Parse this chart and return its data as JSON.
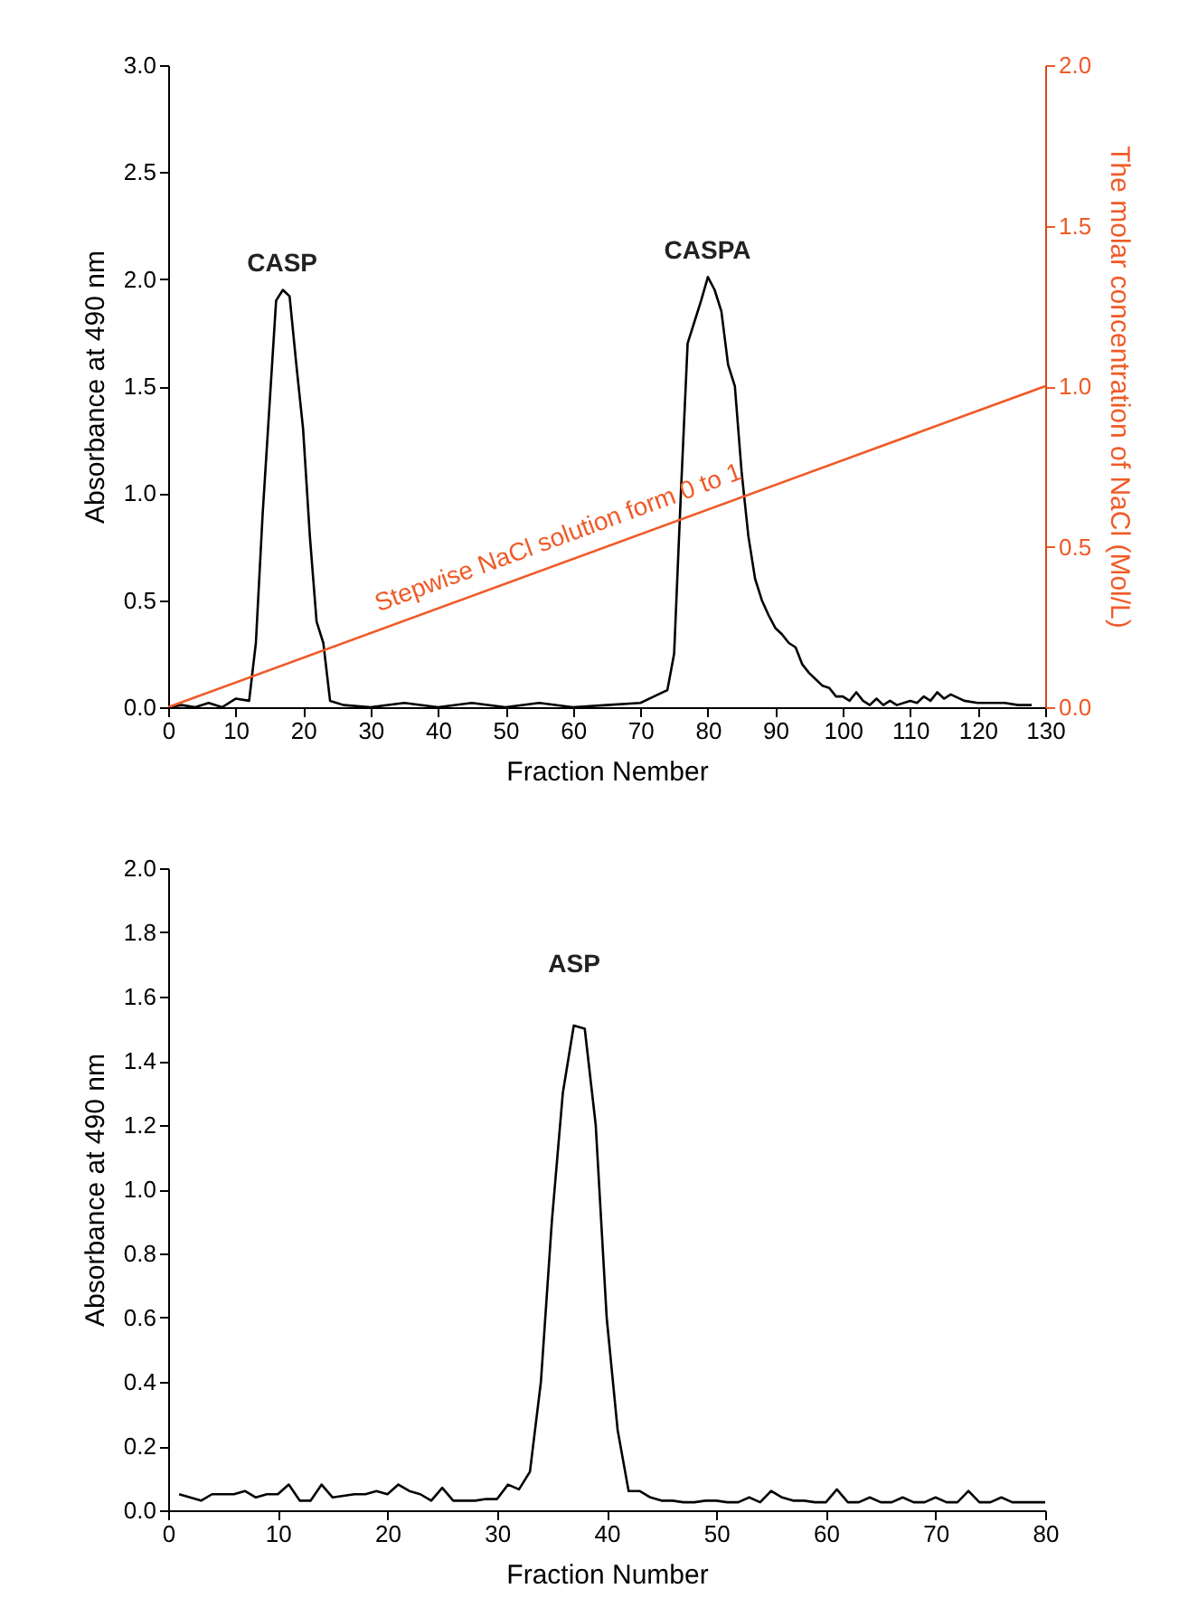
{
  "chart_data": [
    {
      "type": "line",
      "xlabel": "Fraction Nember",
      "ylabel": "Absorbance at 490 nm",
      "y2label": "The molar concentration of NaCl  (Mol/L)",
      "xlim": [
        0,
        130
      ],
      "xticks": [
        0,
        10,
        20,
        30,
        40,
        50,
        60,
        70,
        80,
        90,
        100,
        110,
        120,
        130
      ],
      "ylim": [
        0,
        3
      ],
      "yticks": [
        {
          "value": 0,
          "label": "0.0"
        },
        0.5,
        {
          "value": 1,
          "label": "1.0"
        },
        1.5,
        {
          "value": 2,
          "label": "2.0"
        },
        2.5,
        {
          "value": 3,
          "label": "3.0"
        }
      ],
      "y2lim": [
        0,
        2
      ],
      "y2ticks": [
        {
          "value": 0,
          "label": "0.0"
        },
        0.5,
        {
          "value": 1,
          "label": "1.0"
        },
        1.5,
        {
          "value": 2,
          "label": "2.0"
        }
      ],
      "grid": false,
      "legend": false,
      "marker": "none",
      "line_style": "solid",
      "annotations": [
        "CASP",
        "CASPA",
        "Stepwise NaCl solution form 0 to 1"
      ],
      "series": [
        {
          "color": "#000000",
          "x": [
            0,
            2,
            4,
            6,
            8,
            10,
            12,
            13,
            14,
            15,
            16,
            17,
            18,
            19,
            20,
            21,
            22,
            23,
            24,
            26,
            30,
            35,
            40,
            45,
            50,
            55,
            60,
            65,
            70,
            72,
            74,
            75,
            76,
            77,
            78,
            79,
            80,
            81,
            82,
            83,
            84,
            85,
            86,
            87,
            88,
            89,
            90,
            91,
            92,
            93,
            94,
            95,
            96,
            97,
            98,
            99,
            100,
            101,
            102,
            103,
            104,
            105,
            106,
            107,
            108,
            110,
            111,
            112,
            113,
            114,
            115,
            116,
            118,
            120,
            122,
            124,
            126,
            128
          ],
          "values": [
            0,
            0.01,
            0,
            0.02,
            0,
            0.04,
            0.03,
            0.3,
            0.9,
            1.4,
            1.9,
            1.95,
            1.92,
            1.6,
            1.3,
            0.8,
            0.4,
            0.3,
            0.03,
            0.01,
            0,
            0.02,
            0,
            0.02,
            0,
            0.02,
            0,
            0.01,
            0.02,
            0.05,
            0.08,
            0.25,
            1.0,
            1.7,
            1.8,
            1.9,
            2.01,
            1.95,
            1.85,
            1.6,
            1.5,
            1.1,
            0.8,
            0.6,
            0.5,
            0.43,
            0.37,
            0.34,
            0.3,
            0.28,
            0.2,
            0.16,
            0.13,
            0.1,
            0.09,
            0.05,
            0.05,
            0.03,
            0.07,
            0.03,
            0.01,
            0.04,
            0.01,
            0.03,
            0.01,
            0.03,
            0.02,
            0.05,
            0.03,
            0.07,
            0.04,
            0.06,
            0.03,
            0.02,
            0.02,
            0.02,
            0.01,
            0.01
          ]
        },
        {
          "color": "#f05a28",
          "axis": "y2",
          "x": [
            0,
            130
          ],
          "values": [
            0,
            1.0
          ]
        }
      ]
    },
    {
      "type": "line",
      "xlabel": "Fraction Number",
      "ylabel": "Absorbance at 490 nm",
      "xlim": [
        0,
        80
      ],
      "xticks": [
        0,
        10,
        20,
        30,
        40,
        50,
        60,
        70,
        80
      ],
      "ylim": [
        0,
        2
      ],
      "yticks": [
        {
          "value": 0,
          "label": "0.0"
        },
        0.2,
        0.4,
        0.6,
        0.8,
        {
          "value": 1,
          "label": "1.0"
        },
        1.2,
        1.4,
        1.6,
        1.8,
        {
          "value": 2,
          "label": "2.0"
        }
      ],
      "grid": false,
      "legend": false,
      "marker": "none",
      "line_style": "solid",
      "annotations": [
        "ASP"
      ],
      "x": [
        1,
        2,
        3,
        4,
        5,
        6,
        7,
        8,
        9,
        10,
        11,
        12,
        13,
        14,
        15,
        16,
        17,
        18,
        19,
        20,
        21,
        22,
        23,
        24,
        25,
        26,
        27,
        28,
        29,
        30,
        31,
        32,
        33,
        34,
        35,
        36,
        37,
        38,
        39,
        40,
        41,
        42,
        43,
        44,
        45,
        46,
        47,
        48,
        49,
        50,
        51,
        52,
        53,
        54,
        55,
        56,
        57,
        58,
        59,
        60,
        61,
        62,
        63,
        64,
        65,
        66,
        67,
        68,
        69,
        70,
        71,
        72,
        73,
        74,
        75,
        76,
        77,
        78,
        79,
        80
      ],
      "series": [
        {
          "color": "#000000",
          "values": [
            0.05,
            0.04,
            0.03,
            0.05,
            0.05,
            0.05,
            0.06,
            0.04,
            0.05,
            0.05,
            0.08,
            0.03,
            0.03,
            0.08,
            0.04,
            0.045,
            0.05,
            0.05,
            0.06,
            0.05,
            0.08,
            0.06,
            0.05,
            0.03,
            0.07,
            0.03,
            0.03,
            0.03,
            0.035,
            0.035,
            0.08,
            0.065,
            0.12,
            0.4,
            0.9,
            1.3,
            1.51,
            1.5,
            1.2,
            0.6,
            0.25,
            0.06,
            0.06,
            0.04,
            0.03,
            0.03,
            0.025,
            0.025,
            0.03,
            0.03,
            0.025,
            0.025,
            0.04,
            0.025,
            0.06,
            0.04,
            0.03,
            0.03,
            0.025,
            0.025,
            0.065,
            0.025,
            0.025,
            0.04,
            0.025,
            0.025,
            0.04,
            0.025,
            0.025,
            0.04,
            0.025,
            0.025,
            0.06,
            0.025,
            0.025,
            0.04,
            0.025,
            0.025,
            0.025,
            0.025
          ]
        }
      ]
    }
  ]
}
